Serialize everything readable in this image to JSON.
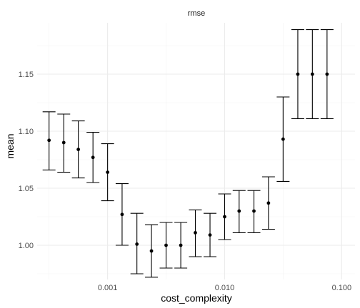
{
  "chart_data": {
    "type": "scatter",
    "facet_label": "rmse",
    "xlabel": "cost_complexity",
    "ylabel": "mean",
    "x_scale": "log10",
    "xlim": [
      0.00025,
      0.13
    ],
    "ylim": [
      0.97,
      1.195
    ],
    "grid": true,
    "x_ticks": [
      {
        "value": 0.001,
        "label": "0.001"
      },
      {
        "value": 0.01,
        "label": "0.010"
      },
      {
        "value": 0.1,
        "label": "0.100"
      }
    ],
    "y_ticks": [
      {
        "value": 1.0,
        "label": "1.00"
      },
      {
        "value": 1.05,
        "label": "1.05"
      },
      {
        "value": 1.1,
        "label": "1.10"
      },
      {
        "value": 1.15,
        "label": "1.15"
      }
    ],
    "points": [
      {
        "x": 0.000316,
        "mean": 1.092,
        "lower": 1.066,
        "upper": 1.117
      },
      {
        "x": 0.000422,
        "mean": 1.09,
        "lower": 1.064,
        "upper": 1.115
      },
      {
        "x": 0.000562,
        "mean": 1.084,
        "lower": 1.059,
        "upper": 1.109
      },
      {
        "x": 0.00075,
        "mean": 1.077,
        "lower": 1.055,
        "upper": 1.099
      },
      {
        "x": 0.001,
        "mean": 1.064,
        "lower": 1.039,
        "upper": 1.089
      },
      {
        "x": 0.00133,
        "mean": 1.027,
        "lower": 1.0,
        "upper": 1.054
      },
      {
        "x": 0.00178,
        "mean": 1.001,
        "lower": 0.975,
        "upper": 1.028
      },
      {
        "x": 0.00237,
        "mean": 0.995,
        "lower": 0.972,
        "upper": 1.018
      },
      {
        "x": 0.00316,
        "mean": 1.0,
        "lower": 0.98,
        "upper": 1.02
      },
      {
        "x": 0.00422,
        "mean": 1.0,
        "lower": 0.98,
        "upper": 1.02
      },
      {
        "x": 0.00562,
        "mean": 1.011,
        "lower": 0.99,
        "upper": 1.031
      },
      {
        "x": 0.0075,
        "mean": 1.009,
        "lower": 0.99,
        "upper": 1.028
      },
      {
        "x": 0.01,
        "mean": 1.025,
        "lower": 1.005,
        "upper": 1.045
      },
      {
        "x": 0.0133,
        "mean": 1.03,
        "lower": 1.011,
        "upper": 1.048
      },
      {
        "x": 0.0178,
        "mean": 1.03,
        "lower": 1.011,
        "upper": 1.048
      },
      {
        "x": 0.0237,
        "mean": 1.037,
        "lower": 1.014,
        "upper": 1.06
      },
      {
        "x": 0.0316,
        "mean": 1.093,
        "lower": 1.056,
        "upper": 1.13
      },
      {
        "x": 0.0422,
        "mean": 1.15,
        "lower": 1.111,
        "upper": 1.189
      },
      {
        "x": 0.0562,
        "mean": 1.15,
        "lower": 1.111,
        "upper": 1.189
      },
      {
        "x": 0.075,
        "mean": 1.15,
        "lower": 1.111,
        "upper": 1.189
      }
    ]
  }
}
